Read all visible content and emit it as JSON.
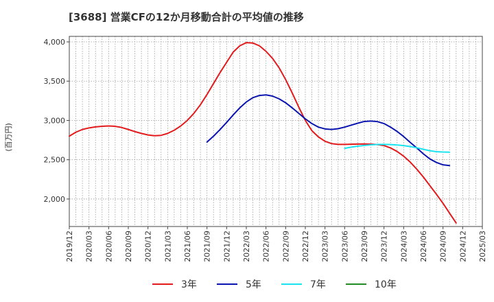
{
  "chart_data": {
    "type": "line",
    "title": "[3688]  営業CFの12か月移動合計の平均値の推移",
    "ylabel": "(百万円)",
    "xlabel": "",
    "ylim": [
      1650,
      4070
    ],
    "yticks": [
      2000,
      2500,
      3000,
      3500,
      4000
    ],
    "ytick_labels": [
      "2,000",
      "2,500",
      "3,000",
      "3,500",
      "4,000"
    ],
    "xlim": [
      "2019-12",
      "2025-03"
    ],
    "xtick_labels": [
      "2019/12",
      "2020/03",
      "2020/06",
      "2020/09",
      "2020/12",
      "2021/03",
      "2021/06",
      "2021/09",
      "2021/12",
      "2022/03",
      "2022/06",
      "2022/09",
      "2022/12",
      "2023/03",
      "2023/06",
      "2023/09",
      "2023/12",
      "2024/03",
      "2024/06",
      "2024/09",
      "2024/12",
      "2025/03"
    ],
    "grid": true,
    "legend_position": "bottom",
    "series": [
      {
        "name": "3年",
        "color": "#e31a1c",
        "points": [
          [
            "2019-12",
            2800
          ],
          [
            "2020-01",
            2850
          ],
          [
            "2020-02",
            2885
          ],
          [
            "2020-03",
            2905
          ],
          [
            "2020-04",
            2918
          ],
          [
            "2020-05",
            2926
          ],
          [
            "2020-06",
            2930
          ],
          [
            "2020-07",
            2925
          ],
          [
            "2020-08",
            2910
          ],
          [
            "2020-09",
            2885
          ],
          [
            "2020-10",
            2858
          ],
          [
            "2020-11",
            2835
          ],
          [
            "2020-12",
            2815
          ],
          [
            "2021-01",
            2805
          ],
          [
            "2021-02",
            2810
          ],
          [
            "2021-03",
            2835
          ],
          [
            "2021-04",
            2875
          ],
          [
            "2021-05",
            2930
          ],
          [
            "2021-06",
            3000
          ],
          [
            "2021-07",
            3090
          ],
          [
            "2021-08",
            3200
          ],
          [
            "2021-09",
            3330
          ],
          [
            "2021-10",
            3470
          ],
          [
            "2021-11",
            3610
          ],
          [
            "2021-12",
            3740
          ],
          [
            "2022-01",
            3870
          ],
          [
            "2022-02",
            3950
          ],
          [
            "2022-03",
            3990
          ],
          [
            "2022-04",
            3985
          ],
          [
            "2022-05",
            3950
          ],
          [
            "2022-06",
            3880
          ],
          [
            "2022-07",
            3790
          ],
          [
            "2022-08",
            3670
          ],
          [
            "2022-09",
            3520
          ],
          [
            "2022-10",
            3350
          ],
          [
            "2022-11",
            3170
          ],
          [
            "2022-12",
            3000
          ],
          [
            "2023-01",
            2870
          ],
          [
            "2023-02",
            2790
          ],
          [
            "2023-03",
            2735
          ],
          [
            "2023-04",
            2705
          ],
          [
            "2023-05",
            2695
          ],
          [
            "2023-06",
            2695
          ],
          [
            "2023-07",
            2697
          ],
          [
            "2023-08",
            2699
          ],
          [
            "2023-09",
            2700
          ],
          [
            "2023-10",
            2698
          ],
          [
            "2023-11",
            2693
          ],
          [
            "2023-12",
            2680
          ],
          [
            "2024-01",
            2650
          ],
          [
            "2024-02",
            2605
          ],
          [
            "2024-03",
            2545
          ],
          [
            "2024-04",
            2470
          ],
          [
            "2024-05",
            2380
          ],
          [
            "2024-06",
            2280
          ],
          [
            "2024-07",
            2170
          ],
          [
            "2024-08",
            2060
          ],
          [
            "2024-09",
            1945
          ],
          [
            "2024-10",
            1820
          ],
          [
            "2024-11",
            1695
          ]
        ]
      },
      {
        "name": "5年",
        "color": "#0a15b0",
        "points": [
          [
            "2021-09",
            2725
          ],
          [
            "2021-10",
            2800
          ],
          [
            "2021-11",
            2885
          ],
          [
            "2021-12",
            2975
          ],
          [
            "2022-01",
            3070
          ],
          [
            "2022-02",
            3160
          ],
          [
            "2022-03",
            3235
          ],
          [
            "2022-04",
            3290
          ],
          [
            "2022-05",
            3318
          ],
          [
            "2022-06",
            3325
          ],
          [
            "2022-07",
            3310
          ],
          [
            "2022-08",
            3275
          ],
          [
            "2022-09",
            3225
          ],
          [
            "2022-10",
            3160
          ],
          [
            "2022-11",
            3090
          ],
          [
            "2022-12",
            3020
          ],
          [
            "2023-01",
            2960
          ],
          [
            "2023-02",
            2915
          ],
          [
            "2023-03",
            2892
          ],
          [
            "2023-04",
            2885
          ],
          [
            "2023-05",
            2895
          ],
          [
            "2023-06",
            2915
          ],
          [
            "2023-07",
            2940
          ],
          [
            "2023-08",
            2965
          ],
          [
            "2023-09",
            2987
          ],
          [
            "2023-10",
            2992
          ],
          [
            "2023-11",
            2985
          ],
          [
            "2023-12",
            2960
          ],
          [
            "2024-01",
            2915
          ],
          [
            "2024-02",
            2860
          ],
          [
            "2024-03",
            2795
          ],
          [
            "2024-04",
            2720
          ],
          [
            "2024-05",
            2650
          ],
          [
            "2024-06",
            2575
          ],
          [
            "2024-07",
            2510
          ],
          [
            "2024-08",
            2465
          ],
          [
            "2024-09",
            2435
          ],
          [
            "2024-10",
            2425
          ]
        ]
      },
      {
        "name": "7年",
        "color": "#19e3f0",
        "points": [
          [
            "2023-06",
            2645
          ],
          [
            "2023-07",
            2660
          ],
          [
            "2023-08",
            2672
          ],
          [
            "2023-09",
            2682
          ],
          [
            "2023-10",
            2690
          ],
          [
            "2023-11",
            2694
          ],
          [
            "2023-12",
            2695
          ],
          [
            "2024-01",
            2693
          ],
          [
            "2024-02",
            2688
          ],
          [
            "2024-03",
            2680
          ],
          [
            "2024-04",
            2668
          ],
          [
            "2024-05",
            2652
          ],
          [
            "2024-06",
            2633
          ],
          [
            "2024-07",
            2614
          ],
          [
            "2024-08",
            2602
          ],
          [
            "2024-09",
            2598
          ],
          [
            "2024-10",
            2596
          ]
        ]
      },
      {
        "name": "10年",
        "color": "#228b22",
        "points": []
      }
    ]
  }
}
